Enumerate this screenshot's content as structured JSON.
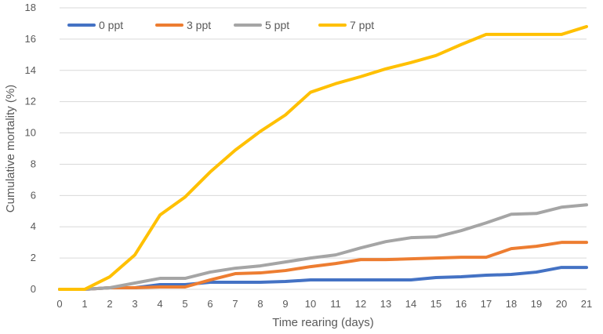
{
  "chart_data": {
    "type": "line",
    "xlabel": "Time rearing (days)",
    "ylabel": "Cumulative mortality (%)",
    "x": [
      0,
      1,
      2,
      3,
      4,
      5,
      6,
      7,
      8,
      9,
      10,
      11,
      12,
      13,
      14,
      15,
      16,
      17,
      18,
      19,
      20,
      21
    ],
    "ylim": [
      0,
      18
    ],
    "yticks": [
      0,
      2,
      4,
      6,
      8,
      10,
      12,
      14,
      16,
      18
    ],
    "grid": true,
    "legend_position": "top",
    "series": [
      {
        "name": "0 ppt",
        "color": "#4472C4",
        "values": [
          0,
          0,
          0.1,
          0.1,
          0.3,
          0.3,
          0.45,
          0.45,
          0.45,
          0.5,
          0.6,
          0.6,
          0.6,
          0.6,
          0.6,
          0.75,
          0.8,
          0.9,
          0.95,
          1.1,
          1.4,
          1.4
        ]
      },
      {
        "name": "3 ppt",
        "color": "#ED7D31",
        "values": [
          0,
          0,
          0.1,
          0.1,
          0.15,
          0.15,
          0.6,
          1.0,
          1.05,
          1.2,
          1.45,
          1.65,
          1.9,
          1.9,
          1.95,
          2.0,
          2.05,
          2.05,
          2.6,
          2.75,
          3.0,
          3.0
        ]
      },
      {
        "name": "5 ppt",
        "color": "#A5A5A5",
        "values": [
          0,
          0,
          0.1,
          0.4,
          0.7,
          0.7,
          1.1,
          1.35,
          1.5,
          1.75,
          2.0,
          2.2,
          2.65,
          3.05,
          3.3,
          3.35,
          3.75,
          4.25,
          4.8,
          4.85,
          5.25,
          5.4
        ]
      },
      {
        "name": "7 ppt",
        "color": "#FFC000",
        "values": [
          0,
          0,
          0.8,
          2.2,
          4.75,
          5.9,
          7.5,
          8.9,
          10.1,
          11.15,
          12.6,
          13.15,
          13.6,
          14.1,
          14.5,
          14.95,
          15.65,
          16.3,
          16.3,
          16.3,
          16.3,
          16.8
        ]
      }
    ]
  }
}
